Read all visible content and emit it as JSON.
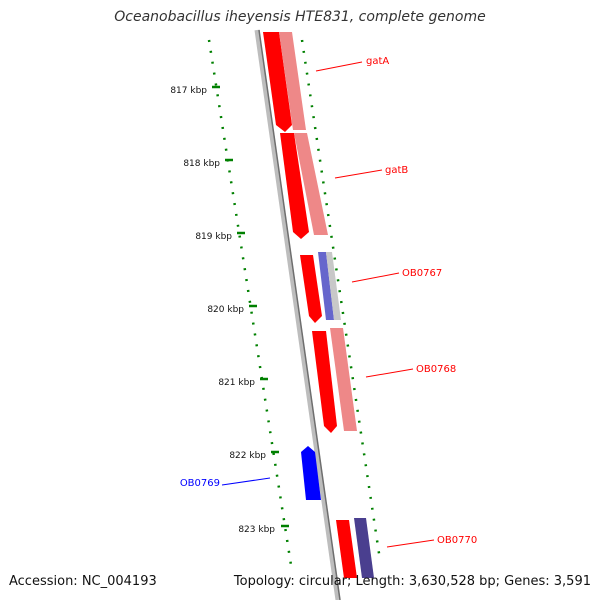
{
  "title": "Oceanobacillus iheyensis HTE831, complete genome",
  "accession": "Accession: NC_004193",
  "summary": "Topology: circular; Length: 3,630,528 bp; Genes: 3,591",
  "colors": {
    "ruler": "#008000",
    "backbone": "#8a8a8a",
    "gene_red": "#ff0000",
    "gene_pink": "#ee8888",
    "gene_blue": "#0000ff",
    "gene_purple": "#6666cc",
    "gene_navy": "#4a3f8f",
    "gene_gray": "#c8c8c8"
  },
  "ticks": [
    "817 kbp",
    "818 kbp",
    "819 kbp",
    "820 kbp",
    "821 kbp",
    "822 kbp",
    "823 kbp"
  ],
  "genes": [
    {
      "label": "gatA",
      "color": "#ff0000"
    },
    {
      "label": "gatB",
      "color": "#ff0000"
    },
    {
      "label": "OB0767",
      "color": "#ff0000"
    },
    {
      "label": "OB0768",
      "color": "#ff0000"
    },
    {
      "label": "OB0769",
      "color": "#0000ff"
    },
    {
      "label": "OB0770",
      "color": "#ff0000"
    }
  ]
}
